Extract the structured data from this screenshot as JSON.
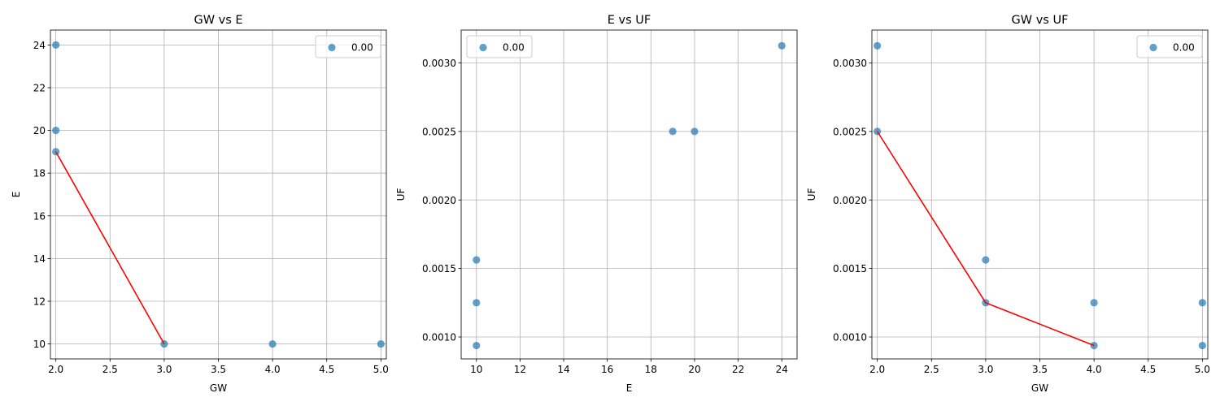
{
  "chart_data": [
    {
      "type": "scatter",
      "title": "GW vs E",
      "xlabel": "GW",
      "ylabel": "E",
      "xlim": [
        1.95,
        5.05
      ],
      "ylim": [
        9.3,
        24.7
      ],
      "xticks": [
        "2.0",
        "2.5",
        "3.0",
        "3.5",
        "4.0",
        "4.5",
        "5.0"
      ],
      "yticks": [
        "10",
        "12",
        "14",
        "16",
        "18",
        "20",
        "22",
        "24"
      ],
      "grid": true,
      "legend": {
        "placement": "top-right",
        "entries": [
          "0.00"
        ]
      },
      "series": [
        {
          "name": "0.00",
          "x": [
            2,
            2,
            2,
            3,
            4,
            5
          ],
          "y": [
            24,
            20,
            19,
            10,
            10,
            10
          ]
        }
      ],
      "line": {
        "x": [
          2,
          3
        ],
        "y": [
          19,
          10
        ]
      }
    },
    {
      "type": "scatter",
      "title": "E vs UF",
      "xlabel": "E",
      "ylabel": "UF",
      "xlim": [
        9.3,
        24.7
      ],
      "ylim": [
        0.00084,
        0.00324
      ],
      "xticks": [
        "10",
        "12",
        "14",
        "16",
        "18",
        "20",
        "22",
        "24"
      ],
      "yticks": [
        "0.0010",
        "0.0015",
        "0.0020",
        "0.0025",
        "0.0030"
      ],
      "grid": true,
      "legend": {
        "placement": "top-left",
        "entries": [
          "0.00"
        ]
      },
      "series": [
        {
          "name": "0.00",
          "x": [
            10,
            10,
            10,
            19,
            20,
            24
          ],
          "y": [
            0.0015625,
            0.00125,
            0.0009375,
            0.0025,
            0.0025,
            0.003125
          ]
        }
      ]
    },
    {
      "type": "scatter",
      "title": "GW vs UF",
      "xlabel": "GW",
      "ylabel": "UF",
      "xlim": [
        1.95,
        5.05
      ],
      "ylim": [
        0.00084,
        0.00324
      ],
      "xticks": [
        "2.0",
        "2.5",
        "3.0",
        "3.5",
        "4.0",
        "4.5",
        "5.0"
      ],
      "yticks": [
        "0.0010",
        "0.0015",
        "0.0020",
        "0.0025",
        "0.0030"
      ],
      "grid": true,
      "legend": {
        "placement": "top-right",
        "entries": [
          "0.00"
        ]
      },
      "series": [
        {
          "name": "0.00",
          "x": [
            2,
            2,
            3,
            3,
            4,
            4,
            5,
            5
          ],
          "y": [
            0.003125,
            0.0025,
            0.0015625,
            0.00125,
            0.00125,
            0.0009375,
            0.00125,
            0.0009375
          ]
        }
      ],
      "line": {
        "x": [
          2,
          3,
          4
        ],
        "y": [
          0.0025,
          0.00125,
          0.0009375
        ]
      }
    }
  ],
  "colors": {
    "marker": "#1f77b4",
    "line": "#ff0000",
    "grid": "#b0b0b0"
  }
}
